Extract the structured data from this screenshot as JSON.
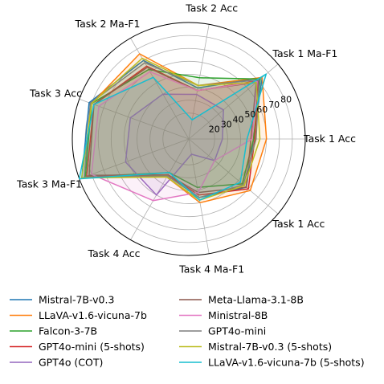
{
  "chart_data": {
    "type": "radar",
    "axes": [
      "Task 1 Acc",
      "Task 1 Ma-F1",
      "Task 2 Acc",
      "Task 2 Ma-F1",
      "Task 3 Acc",
      "Task 3 Ma-F1",
      "Task 4 Acc",
      "Task 4 Ma-F1",
      "Task 1 Acc"
    ],
    "r_ticks": [
      "20",
      "30",
      "40",
      "50",
      "60",
      "70",
      "80"
    ],
    "rlim": [
      0,
      90
    ],
    "grid": true,
    "legend_position": "bottom",
    "series": [
      {
        "name": "Mistral-7B-v0.3",
        "color": "#1f77b4",
        "values": [
          50,
          74,
          40,
          70,
          82,
          88,
          32,
          46,
          58
        ]
      },
      {
        "name": "LLaVA-v1.6-vicuna-7b",
        "color": "#ff7f0e",
        "values": [
          60,
          74,
          42,
          76,
          80,
          86,
          34,
          50,
          62
        ]
      },
      {
        "name": "Falcon-3-7B",
        "color": "#2ca02c",
        "values": [
          50,
          72,
          48,
          62,
          80,
          85,
          30,
          38,
          54
        ]
      },
      {
        "name": "GPT4o-mini (5-shots)",
        "color": "#d62728",
        "values": [
          51,
          70,
          38,
          65,
          78,
          84,
          32,
          44,
          60
        ]
      },
      {
        "name": "GPT4o (COT)",
        "color": "#9467bd",
        "values": [
          26,
          35,
          35,
          40,
          48,
          52,
          50,
          12,
          26
        ]
      },
      {
        "name": "Meta-Llama-3.1-8B",
        "color": "#8c564b",
        "values": [
          48,
          68,
          38,
          64,
          78,
          82,
          32,
          42,
          58
        ]
      },
      {
        "name": "Ministral-8B",
        "color": "#e377c2",
        "values": [
          49,
          69,
          38,
          60,
          74,
          80,
          55,
          42,
          26
        ]
      },
      {
        "name": "GPT4o-mini",
        "color": "#7f7f7f",
        "values": [
          52,
          71,
          42,
          68,
          81,
          86,
          33,
          46,
          55
        ]
      },
      {
        "name": "Mistral-7B-v0.3 (5-shots)",
        "color": "#bcbd22",
        "values": [
          55,
          68,
          42,
          72,
          80,
          88,
          34,
          48,
          56
        ]
      },
      {
        "name": "LLaVA-v1.6-vicuna-7b (5-shots)",
        "color": "#17becf",
        "values": [
          45,
          78,
          15,
          55,
          78,
          90,
          30,
          48,
          52
        ]
      }
    ]
  }
}
